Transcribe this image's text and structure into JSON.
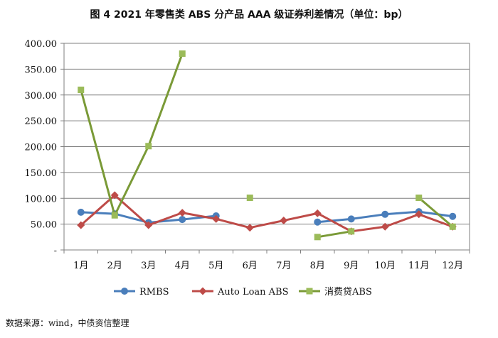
{
  "title": "图 4 2021 年零售类 ABS 分产品 AAA 级证券利差情况（单位：bp）",
  "source": "数据来源：wind，中债资信整理",
  "chart_data": {
    "type": "line",
    "title": "图 4 2021 年零售类 ABS 分产品 AAA 级证券利差情况（单位：bp）",
    "categories": [
      "1月",
      "2月",
      "3月",
      "4月",
      "5月",
      "6月",
      "7月",
      "8月",
      "9月",
      "10月",
      "11月",
      "12月"
    ],
    "ylim": [
      0,
      400
    ],
    "yticks": [
      {
        "value": 0,
        "label": "-"
      },
      {
        "value": 50,
        "label": "50.00"
      },
      {
        "value": 100,
        "label": "100.00"
      },
      {
        "value": 150,
        "label": "150.00"
      },
      {
        "value": 200,
        "label": "200.00"
      },
      {
        "value": 250,
        "label": "250.00"
      },
      {
        "value": 300,
        "label": "300.00"
      },
      {
        "value": 350,
        "label": "350.00"
      },
      {
        "value": 400,
        "label": "400.00"
      }
    ],
    "grid": true,
    "legend_position": "bottom",
    "series": [
      {
        "name": "RMBS",
        "color": "#4a7ebb",
        "marker": "circle",
        "values": [
          73,
          70,
          53,
          59,
          66,
          null,
          null,
          54,
          60,
          69,
          74,
          65
        ]
      },
      {
        "name": "Auto Loan ABS",
        "color": "#be4b48",
        "marker": "diamond",
        "values": [
          48,
          106,
          48,
          72,
          60,
          43,
          57,
          71,
          36,
          45,
          69,
          45
        ]
      },
      {
        "name": "消费贷ABS",
        "color": "#7a9a37",
        "marker_color": "#9bbb59",
        "marker": "square",
        "values": [
          310,
          67,
          201,
          380,
          null,
          101,
          null,
          25,
          36,
          null,
          101,
          45
        ]
      }
    ]
  }
}
